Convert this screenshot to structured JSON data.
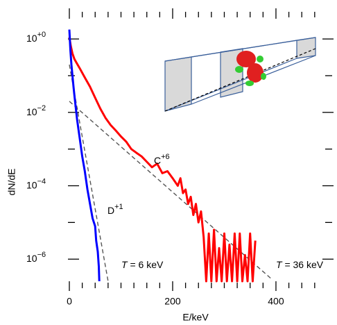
{
  "chart_data": {
    "type": "line",
    "ylabel": "dN/dE",
    "xlabel": "E/keV",
    "xlim": [
      0,
      490
    ],
    "xticks": [
      0,
      200,
      400
    ],
    "xminorticks": [
      25,
      50,
      75,
      100,
      125,
      150,
      175,
      225,
      250,
      275,
      300,
      325,
      350,
      375,
      425,
      450,
      475
    ],
    "ylim": [
      2.5e-07,
      6
    ],
    "yscale": "log",
    "yticks": [
      {
        "value": 1,
        "label": "10+0"
      },
      {
        "value": 0.01,
        "label": "10−2"
      },
      {
        "value": 0.0001,
        "label": "10−4"
      },
      {
        "value": 1e-06,
        "label": "10−6"
      }
    ],
    "yminorticks": [
      0.1,
      0.001,
      1e-05
    ],
    "series": [
      {
        "name": "C+6",
        "color": "#ff0000",
        "x": [
          0,
          3,
          6,
          10,
          15,
          20,
          30,
          40,
          50,
          60,
          70,
          80,
          90,
          100,
          110,
          120,
          130,
          140,
          150,
          160,
          170,
          180,
          190,
          200,
          210,
          215,
          220,
          225,
          230,
          235,
          240,
          245,
          250,
          255,
          260,
          265,
          270,
          275,
          280,
          285,
          290,
          295,
          300,
          305,
          310,
          315,
          320,
          325,
          330,
          335,
          340,
          345,
          350,
          355,
          360
        ],
        "values": [
          1.12,
          0.63,
          0.4,
          0.28,
          0.21,
          0.16,
          0.089,
          0.05,
          0.025,
          0.0126,
          0.0071,
          0.0045,
          0.0032,
          0.0022,
          0.0016,
          0.001,
          0.00079,
          0.00063,
          0.00045,
          0.00032,
          0.0004,
          0.00022,
          0.00025,
          0.00016,
          0.0001,
          0.00016,
          6.3e-05,
          7.9e-05,
          3.2e-05,
          5e-05,
          1.6e-05,
          3.2e-05,
          1e-05,
          2e-05,
          4e-06,
          2.5e-07,
          5e-06,
          2.5e-07,
          6.3e-06,
          2.5e-07,
          2e-06,
          2.5e-07,
          5e-06,
          2.5e-07,
          2.5e-06,
          2.5e-07,
          5e-06,
          2.5e-07,
          5e-06,
          2.5e-07,
          1.3e-06,
          2.5e-07,
          5e-06,
          2.5e-07,
          3.2e-06
        ]
      },
      {
        "name": "D+1",
        "color": "#0000ff",
        "x": [
          0,
          1,
          2,
          4,
          6,
          8,
          10,
          15,
          20,
          25,
          30,
          35,
          40,
          45,
          50,
          52,
          55,
          57,
          58
        ],
        "values": [
          1.8,
          1.0,
          0.5,
          0.2,
          0.1,
          0.05,
          0.028,
          0.0063,
          0.002,
          0.00063,
          0.00025,
          7.9e-05,
          3.2e-05,
          1.3e-05,
          7.9e-06,
          3.2e-06,
          1.6e-06,
          6.3e-07,
          2.5e-07
        ]
      }
    ],
    "fits": [
      {
        "label": "T = 6 keV",
        "color": "#555555",
        "x": [
          0,
          75
        ],
        "values": [
          0.2,
          2.5e-07
        ]
      },
      {
        "label": "T = 36 keV",
        "color": "#555555",
        "x": [
          0,
          390
        ],
        "values": [
          0.02,
          3e-07
        ]
      }
    ]
  }
}
